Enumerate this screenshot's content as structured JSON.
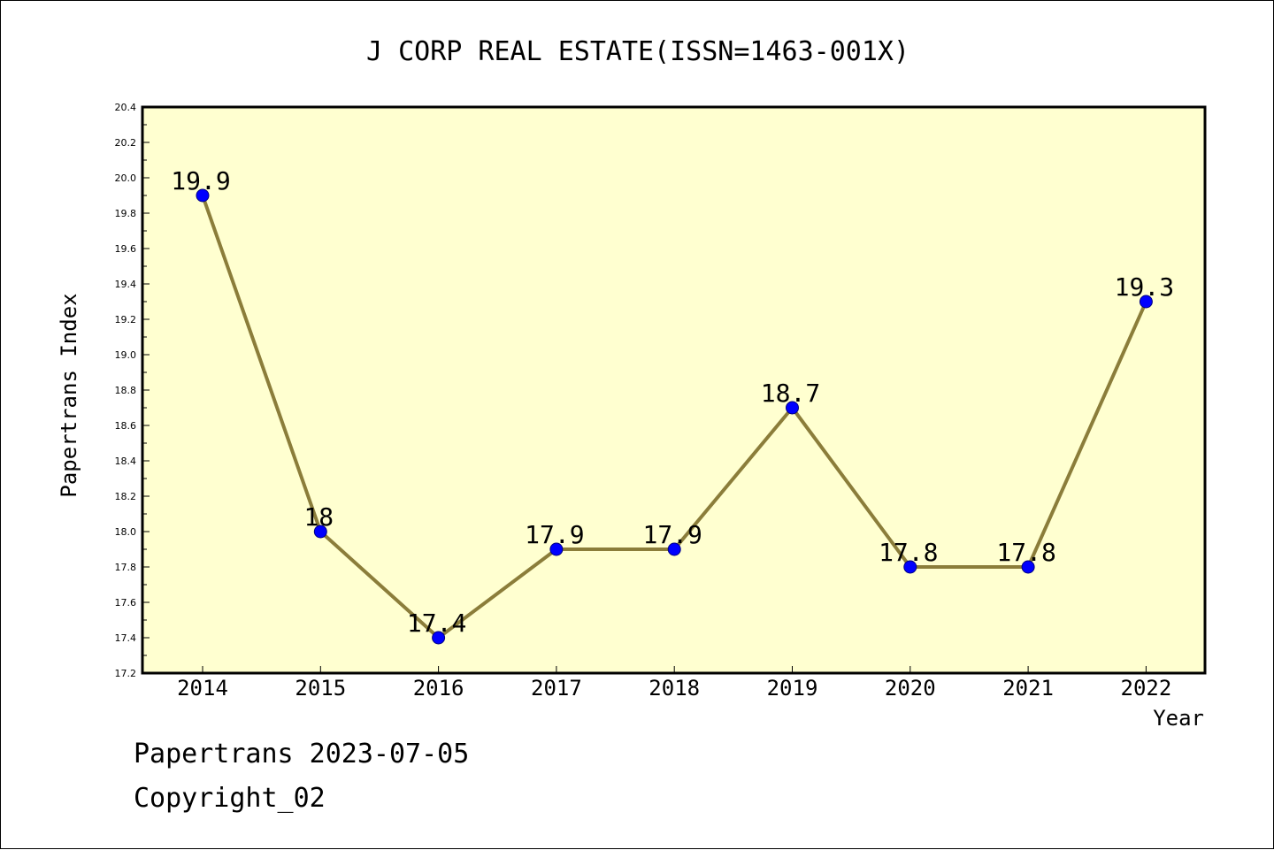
{
  "chart_data": {
    "type": "line",
    "title": "J CORP REAL ESTATE(ISSN=1463-001X)",
    "xlabel": "Year",
    "ylabel": "Papertrans Index",
    "categories": [
      "2014",
      "2015",
      "2016",
      "2017",
      "2018",
      "2019",
      "2020",
      "2021",
      "2022"
    ],
    "series": [
      {
        "values": [
          19.9,
          18,
          17.4,
          17.9,
          17.9,
          18.7,
          17.8,
          17.8,
          19.3
        ],
        "labels": [
          "19.9",
          "18",
          "17.4",
          "17.9",
          "17.9",
          "18.7",
          "17.8",
          "17.8",
          "19.3"
        ]
      }
    ],
    "ylim": [
      17.2,
      20.4
    ],
    "yticks": [
      "17.2",
      "17.4",
      "17.6",
      "17.8",
      "18.0",
      "18.2",
      "18.4",
      "18.6",
      "18.8",
      "19.0",
      "19.2",
      "19.4",
      "19.6",
      "19.8",
      "20.0",
      "20.2",
      "20.4"
    ],
    "grid": false,
    "legend": "none",
    "colors": {
      "plot_background": "#ffffd0",
      "line": "#8b7d3a",
      "marker": "#0000ff",
      "marker_edge": "#000080",
      "axis": "#000000"
    }
  },
  "footer": {
    "line1": "Papertrans 2023-07-05",
    "line2": "Copyright_02"
  }
}
